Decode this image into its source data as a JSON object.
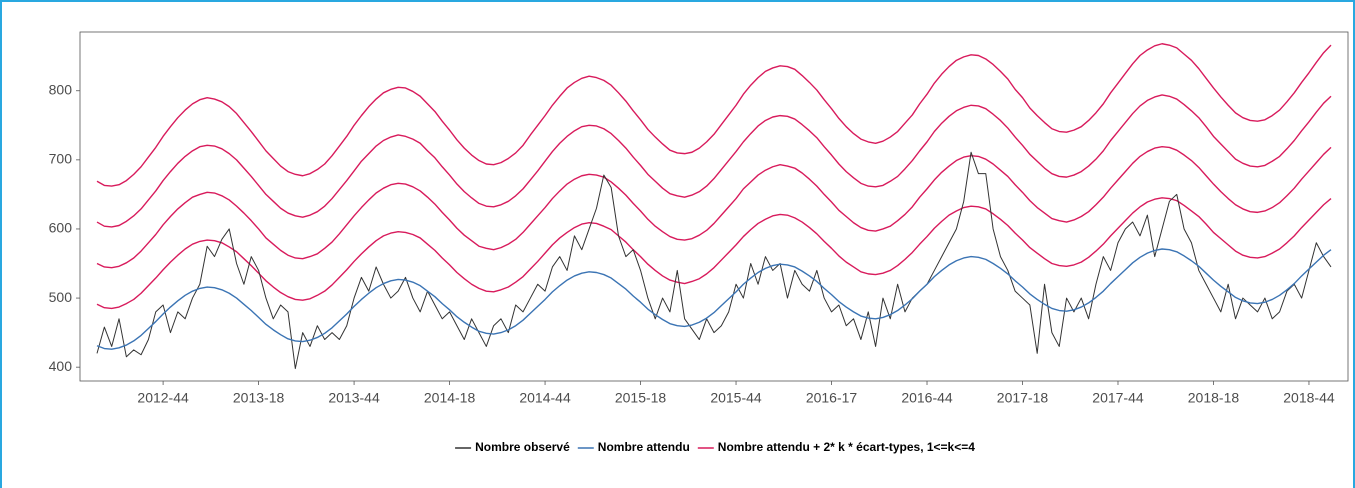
{
  "chart_data": {
    "type": "line",
    "categories": [
      null,
      null,
      null,
      null,
      null,
      null,
      null,
      null,
      null,
      "2012-44",
      null,
      null,
      null,
      null,
      null,
      null,
      null,
      null,
      null,
      null,
      null,
      null,
      "2013-18",
      null,
      null,
      null,
      null,
      null,
      null,
      null,
      null,
      null,
      null,
      null,
      null,
      "2013-44",
      null,
      null,
      null,
      null,
      null,
      null,
      null,
      null,
      null,
      null,
      null,
      null,
      "2014-18",
      null,
      null,
      null,
      null,
      null,
      null,
      null,
      null,
      null,
      null,
      null,
      null,
      "2014-44",
      null,
      null,
      null,
      null,
      null,
      null,
      null,
      null,
      null,
      null,
      null,
      null,
      "2015-18",
      null,
      null,
      null,
      null,
      null,
      null,
      null,
      null,
      null,
      null,
      null,
      null,
      "2015-44",
      null,
      null,
      null,
      null,
      null,
      null,
      null,
      null,
      null,
      null,
      null,
      null,
      "2016-17",
      null,
      null,
      null,
      null,
      null,
      null,
      null,
      null,
      null,
      null,
      null,
      null,
      "2016-44",
      null,
      null,
      null,
      null,
      null,
      null,
      null,
      null,
      null,
      null,
      null,
      null,
      "2017-18",
      null,
      null,
      null,
      null,
      null,
      null,
      null,
      null,
      null,
      null,
      null,
      null,
      "2017-44",
      null,
      null,
      null,
      null,
      null,
      null,
      null,
      null,
      null,
      null,
      null,
      null,
      "2018-18",
      null,
      null,
      null,
      null,
      null,
      null,
      null,
      null,
      null,
      null,
      null,
      null,
      "2018-44",
      null,
      null,
      null
    ],
    "series": [
      {
        "name": "Nombre observé",
        "color": "#333333",
        "values": [
          420,
          458,
          430,
          470,
          415,
          425,
          418,
          440,
          480,
          490,
          450,
          480,
          470,
          500,
          520,
          575,
          560,
          585,
          600,
          550,
          520,
          560,
          540,
          500,
          470,
          490,
          480,
          398,
          450,
          430,
          460,
          440,
          450,
          440,
          460,
          500,
          530,
          510,
          545,
          520,
          500,
          510,
          530,
          500,
          480,
          510,
          490,
          470,
          480,
          460,
          440,
          470,
          450,
          430,
          460,
          470,
          450,
          490,
          480,
          500,
          520,
          510,
          545,
          560,
          540,
          590,
          570,
          600,
          630,
          678,
          660,
          590,
          560,
          570,
          540,
          500,
          470,
          500,
          480,
          540,
          470,
          455,
          440,
          470,
          450,
          460,
          480,
          520,
          500,
          550,
          520,
          560,
          540,
          550,
          500,
          540,
          520,
          510,
          540,
          500,
          480,
          490,
          460,
          470,
          440,
          480,
          430,
          500,
          470,
          520,
          480,
          500,
          510,
          520,
          540,
          560,
          580,
          600,
          640,
          711,
          680,
          680,
          600,
          560,
          540,
          510,
          500,
          490,
          420,
          520,
          450,
          430,
          500,
          480,
          500,
          470,
          520,
          560,
          540,
          580,
          600,
          610,
          590,
          620,
          560,
          600,
          640,
          650,
          600,
          580,
          540,
          520,
          500,
          480,
          520,
          470,
          500,
          490,
          480,
          500,
          470,
          480,
          510,
          520,
          500,
          540,
          580,
          560,
          545
        ]
      },
      {
        "name": "Nombre attendu",
        "color": "#3b74b4",
        "values": [
          431,
          427,
          426,
          428,
          432,
          438,
          446,
          456,
          466,
          477,
          487,
          496,
          504,
          510,
          514,
          516,
          515,
          512,
          507,
          500,
          491,
          482,
          472,
          462,
          454,
          447,
          441,
          438,
          437,
          439,
          443,
          449,
          457,
          467,
          477,
          488,
          498,
          507,
          515,
          521,
          525,
          527,
          526,
          523,
          518,
          510,
          502,
          492,
          483,
          473,
          465,
          458,
          452,
          449,
          448,
          450,
          454,
          460,
          468,
          478,
          488,
          498,
          509,
          518,
          526,
          532,
          536,
          538,
          537,
          534,
          529,
          521,
          513,
          503,
          494,
          484,
          476,
          469,
          463,
          460,
          459,
          461,
          465,
          471,
          479,
          489,
          499,
          509,
          520,
          529,
          537,
          543,
          547,
          549,
          548,
          545,
          539,
          532,
          524,
          514,
          505,
          495,
          487,
          480,
          474,
          471,
          470,
          472,
          476,
          482,
          490,
          499,
          510,
          520,
          531,
          540,
          548,
          554,
          558,
          560,
          559,
          556,
          550,
          543,
          535,
          525,
          516,
          506,
          498,
          491,
          485,
          482,
          481,
          483,
          487,
          493,
          501,
          510,
          521,
          531,
          541,
          551,
          559,
          565,
          569,
          571,
          570,
          567,
          561,
          554,
          546,
          536,
          526,
          517,
          509,
          501,
          496,
          493,
          492,
          494,
          498,
          504,
          512,
          521,
          532,
          542,
          552,
          562,
          570
        ]
      }
    ],
    "bands": {
      "name": "Nombre attendu + 2* k * écart-types, 1<=k<=4",
      "color": "#d81b5c",
      "values": [
        [
          491,
          486,
          485,
          487,
          492,
          498,
          507,
          518,
          529,
          541,
          552,
          562,
          571,
          578,
          582,
          584,
          583,
          580,
          574,
          567,
          557,
          547,
          536,
          525,
          516,
          508,
          502,
          498,
          497,
          499,
          504,
          510,
          519,
          530,
          541,
          553,
          564,
          574,
          583,
          590,
          594,
          596,
          595,
          592,
          587,
          578,
          569,
          558,
          548,
          537,
          528,
          520,
          514,
          510,
          509,
          512,
          516,
          523,
          531,
          542,
          553,
          565,
          577,
          587,
          595,
          602,
          607,
          609,
          608,
          604,
          599,
          590,
          581,
          570,
          560,
          549,
          540,
          532,
          526,
          523,
          521,
          524,
          528,
          535,
          544,
          555,
          566,
          577,
          589,
          599,
          608,
          614,
          619,
          621,
          620,
          616,
          610,
          602,
          593,
          582,
          572,
          561,
          552,
          545,
          538,
          535,
          534,
          536,
          540,
          547,
          556,
          566,
          578,
          589,
          601,
          611,
          620,
          626,
          631,
          633,
          632,
          629,
          622,
          614,
          605,
          594,
          584,
          573,
          565,
          557,
          550,
          547,
          546,
          548,
          552,
          559,
          568,
          578,
          590,
          601,
          612,
          623,
          632,
          639,
          643,
          645,
          644,
          641,
          634,
          626,
          618,
          607,
          595,
          586,
          577,
          568,
          562,
          559,
          558,
          560,
          565,
          571,
          580,
          590,
          602,
          613,
          624,
          635,
          644
        ],
        [
          550,
          545,
          544,
          546,
          551,
          558,
          568,
          580,
          592,
          606,
          618,
          629,
          638,
          646,
          650,
          653,
          652,
          648,
          642,
          633,
          623,
          612,
          600,
          587,
          578,
          569,
          562,
          558,
          557,
          560,
          564,
          572,
          581,
          593,
          606,
          619,
          631,
          642,
          652,
          659,
          664,
          666,
          665,
          661,
          655,
          646,
          636,
          624,
          613,
          601,
          591,
          583,
          575,
          572,
          570,
          573,
          578,
          585,
          595,
          607,
          619,
          631,
          644,
          655,
          665,
          672,
          677,
          679,
          678,
          675,
          668,
          659,
          649,
          637,
          626,
          614,
          604,
          596,
          589,
          585,
          584,
          586,
          591,
          598,
          608,
          620,
          632,
          644,
          658,
          668,
          678,
          685,
          690,
          693,
          691,
          688,
          681,
          672,
          662,
          650,
          639,
          627,
          618,
          609,
          602,
          598,
          597,
          600,
          604,
          612,
          621,
          632,
          646,
          658,
          671,
          682,
          691,
          699,
          704,
          706,
          705,
          701,
          694,
          685,
          676,
          664,
          653,
          641,
          631,
          623,
          615,
          612,
          610,
          613,
          618,
          625,
          635,
          646,
          659,
          671,
          683,
          695,
          705,
          712,
          717,
          719,
          718,
          714,
          707,
          699,
          689,
          677,
          665,
          654,
          644,
          635,
          629,
          625,
          624,
          626,
          631,
          638,
          648,
          659,
          672,
          684,
          696,
          708,
          718
        ],
        [
          610,
          604,
          603,
          605,
          611,
          619,
          629,
          642,
          655,
          670,
          683,
          695,
          705,
          713,
          719,
          721,
          720,
          716,
          709,
          700,
          688,
          676,
          663,
          650,
          640,
          630,
          623,
          619,
          617,
          620,
          625,
          633,
          644,
          657,
          670,
          684,
          698,
          709,
          720,
          728,
          733,
          736,
          734,
          730,
          724,
          713,
          703,
          690,
          678,
          665,
          654,
          645,
          637,
          633,
          632,
          635,
          640,
          648,
          658,
          671,
          684,
          698,
          712,
          724,
          734,
          742,
          748,
          750,
          749,
          745,
          738,
          728,
          717,
          704,
          692,
          679,
          669,
          659,
          651,
          648,
          646,
          649,
          654,
          662,
          673,
          686,
          699,
          712,
          726,
          738,
          749,
          757,
          762,
          764,
          763,
          759,
          751,
          742,
          732,
          719,
          707,
          694,
          683,
          674,
          666,
          662,
          661,
          663,
          669,
          676,
          687,
          699,
          713,
          726,
          741,
          753,
          763,
          771,
          776,
          779,
          778,
          774,
          766,
          757,
          746,
          733,
          721,
          708,
          698,
          688,
          680,
          676,
          675,
          678,
          683,
          691,
          701,
          713,
          728,
          741,
          754,
          767,
          778,
          786,
          791,
          794,
          792,
          788,
          780,
          771,
          761,
          748,
          734,
          723,
          712,
          701,
          695,
          691,
          690,
          692,
          698,
          705,
          716,
          728,
          742,
          755,
          769,
          782,
          792
        ],
        [
          669,
          663,
          662,
          664,
          670,
          679,
          690,
          704,
          718,
          734,
          748,
          761,
          772,
          781,
          787,
          790,
          788,
          784,
          777,
          767,
          754,
          741,
          727,
          713,
          702,
          691,
          683,
          679,
          677,
          680,
          686,
          694,
          706,
          720,
          734,
          750,
          764,
          777,
          788,
          797,
          802,
          805,
          804,
          799,
          792,
          781,
          770,
          756,
          743,
          729,
          717,
          707,
          699,
          694,
          693,
          696,
          702,
          710,
          721,
          736,
          750,
          764,
          779,
          792,
          804,
          812,
          818,
          821,
          819,
          815,
          808,
          797,
          785,
          771,
          758,
          744,
          733,
          723,
          714,
          710,
          709,
          711,
          717,
          726,
          737,
          751,
          765,
          779,
          795,
          808,
          819,
          828,
          833,
          836,
          835,
          831,
          822,
          812,
          801,
          787,
          774,
          760,
          748,
          738,
          730,
          726,
          724,
          727,
          733,
          741,
          753,
          765,
          781,
          795,
          811,
          824,
          835,
          844,
          849,
          852,
          851,
          846,
          838,
          828,
          817,
          802,
          790,
          775,
          764,
          754,
          745,
          741,
          740,
          743,
          748,
          757,
          768,
          781,
          797,
          811,
          825,
          839,
          851,
          859,
          865,
          868,
          866,
          862,
          853,
          844,
          832,
          818,
          804,
          791,
          779,
          768,
          761,
          757,
          756,
          758,
          764,
          772,
          784,
          797,
          812,
          826,
          841,
          855,
          866
        ]
      ]
    },
    "ylim": [
      380,
      885
    ],
    "yticks": [
      400,
      500,
      600,
      700,
      800
    ],
    "grid": false
  }
}
